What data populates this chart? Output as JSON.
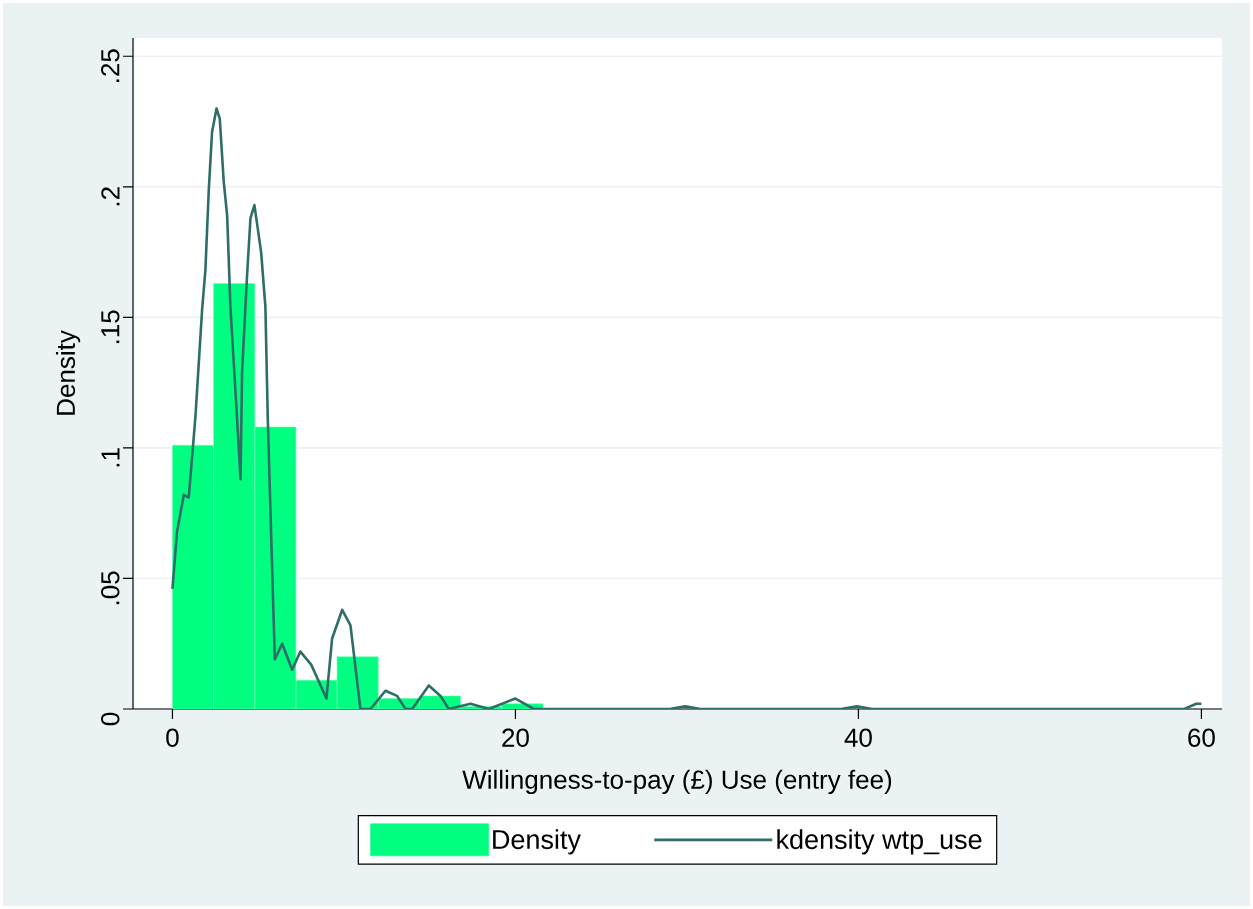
{
  "chart_data": {
    "type": "histogram",
    "xlabel": "Willingness-to-pay (£) Use (entry fee)",
    "ylabel": "Density",
    "series": [
      {
        "name": "Density",
        "color": "#00ff80",
        "bins": [
          0,
          2.4,
          4.8,
          7.2,
          9.6,
          12,
          14.4,
          16.8,
          19.2,
          21.6
        ],
        "values": [
          0.101,
          0.163,
          0.108,
          0.011,
          0.02,
          0.004,
          0.005,
          0.001,
          0.002
        ]
      },
      {
        "name": "kdensity wtp_use",
        "type": "line",
        "color": "#2e6e66",
        "x": [
          0,
          0.27,
          0.66,
          0.95,
          1.34,
          1.73,
          1.92,
          2.12,
          2.31,
          2.57,
          2.76,
          2.99,
          3.19,
          3.38,
          3.77,
          3.97,
          4.06,
          4.35,
          4.55,
          4.78,
          5.17,
          5.42,
          5.56,
          5.75,
          5.97,
          6.4,
          6.98,
          7.46,
          8.09,
          8.98,
          9.31,
          9.9,
          10.38,
          10.96,
          11.55,
          12.42,
          13.1,
          13.59,
          13.98,
          14.95,
          15.63,
          16.11,
          17.38,
          18.45,
          20.0,
          21.07,
          29.0,
          29.9,
          30.8,
          39.0,
          39.9,
          40.8,
          59.0,
          59.7,
          60.0
        ],
        "values": [
          0.046,
          0.068,
          0.082,
          0.081,
          0.112,
          0.153,
          0.168,
          0.199,
          0.221,
          0.23,
          0.226,
          0.202,
          0.189,
          0.154,
          0.111,
          0.088,
          0.129,
          0.166,
          0.188,
          0.193,
          0.175,
          0.154,
          0.111,
          0.068,
          0.019,
          0.025,
          0.015,
          0.022,
          0.017,
          0.004,
          0.027,
          0.038,
          0.032,
          0,
          0,
          0.007,
          0.005,
          0,
          0,
          0.009,
          0.005,
          0,
          0.002,
          0,
          0.004,
          0,
          0,
          0.001,
          0,
          0,
          0.001,
          0,
          0,
          0.002,
          0.002
        ]
      }
    ],
    "xlim": [
      -2.3,
      61.2
    ],
    "ylim": [
      0,
      0.257
    ],
    "xticks": [
      0,
      20,
      40,
      60
    ],
    "yticks": [
      {
        "value": 0,
        "label": "0"
      },
      {
        "value": 0.05,
        "label": ".05"
      },
      {
        "value": 0.1,
        "label": ".1"
      },
      {
        "value": 0.15,
        "label": ".15"
      },
      {
        "value": 0.2,
        "label": ".2"
      },
      {
        "value": 0.25,
        "label": ".25"
      }
    ],
    "grid": "y",
    "legend": "bottom"
  }
}
